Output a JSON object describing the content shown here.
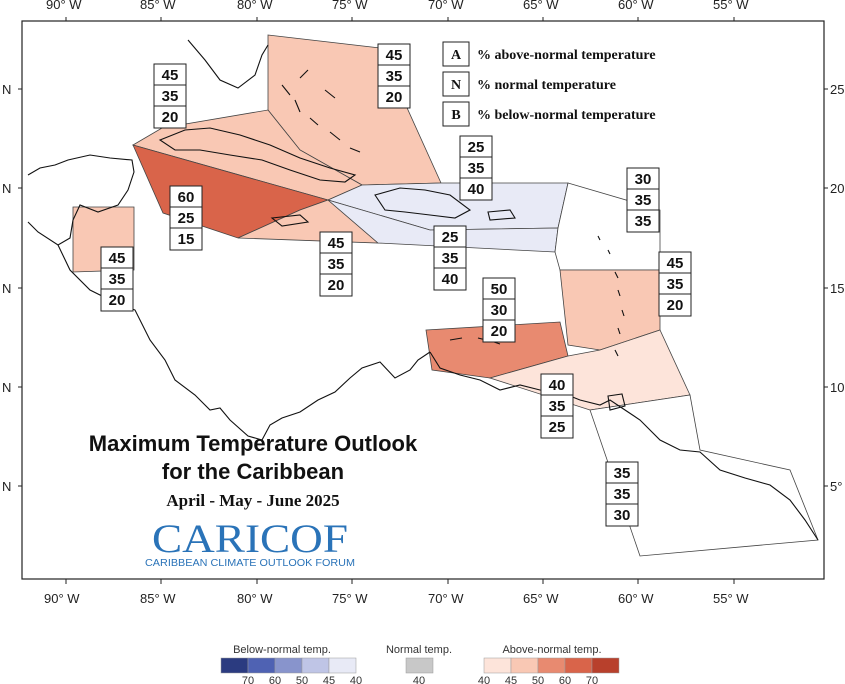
{
  "axes": {
    "x_labels": [
      "90° W",
      "85° W",
      "80° W",
      "75° W",
      "70° W",
      "65° W",
      "60° W",
      "55° W"
    ],
    "y_labels_left": [
      "N",
      "N",
      "N",
      "N",
      "N"
    ],
    "y_labels_right": [
      "25",
      "20",
      "15",
      "10",
      "5°"
    ]
  },
  "legend_key": [
    {
      "letter": "A",
      "text": "% above-normal temperature"
    },
    {
      "letter": "N",
      "text": "% normal temperature"
    },
    {
      "letter": "B",
      "text": "% below-normal temperature"
    }
  ],
  "titles": {
    "line1": "Maximum Temperature Outlook",
    "line2": "for the Caribbean",
    "period": "April - May - June 2025"
  },
  "logo": {
    "name": "CARICOF",
    "subtitle": "CARIBBEAN CLIMATE OUTLOOK FORUM"
  },
  "zones": [
    {
      "id": "bahamas",
      "above": "45",
      "normal": "35",
      "below": "20",
      "fill": "#f9c8b4"
    },
    {
      "id": "cuba",
      "above": "45",
      "normal": "35",
      "below": "20",
      "fill": "#f9c8b4"
    },
    {
      "id": "cayman-jamaica",
      "above": "60",
      "normal": "25",
      "below": "15",
      "fill": "#d9644a"
    },
    {
      "id": "jamaica-south",
      "above": "45",
      "normal": "35",
      "below": "20",
      "fill": "#f9c8b4"
    },
    {
      "id": "belize",
      "above": "45",
      "normal": "35",
      "below": "20",
      "fill": "#f9c8b4"
    },
    {
      "id": "hispaniola-north",
      "above": "25",
      "normal": "35",
      "below": "40",
      "fill": "#e8eaf6"
    },
    {
      "id": "hispaniola-pr",
      "above": "25",
      "normal": "35",
      "below": "40",
      "fill": "#e8eaf6"
    },
    {
      "id": "leeward",
      "above": "30",
      "normal": "35",
      "below": "35",
      "fill": "#ffffff"
    },
    {
      "id": "windward",
      "above": "45",
      "normal": "35",
      "below": "20",
      "fill": "#f9c8b4"
    },
    {
      "id": "abc-islands",
      "above": "50",
      "normal": "30",
      "below": "20",
      "fill": "#e88a70"
    },
    {
      "id": "trinidad",
      "above": "40",
      "normal": "35",
      "below": "25",
      "fill": "#fde4da"
    },
    {
      "id": "guianas",
      "above": "35",
      "normal": "35",
      "below": "30",
      "fill": "#ffffff"
    }
  ],
  "colorbar": {
    "below_title": "Below-normal temp.",
    "normal_title": "Normal temp.",
    "above_title": "Above-normal temp.",
    "below_colors": [
      "#2b3b80",
      "#4f62b3",
      "#8894cc",
      "#bfc5e6",
      "#e8eaf6"
    ],
    "below_ticks": [
      "70",
      "60",
      "50",
      "45",
      "40"
    ],
    "normal_color": "#c8c8c8",
    "normal_tick": "40",
    "above_colors": [
      "#fde4da",
      "#f9c8b4",
      "#e88a70",
      "#d9644a",
      "#b8402c"
    ],
    "above_ticks": [
      "40",
      "45",
      "50",
      "60",
      "70"
    ]
  }
}
